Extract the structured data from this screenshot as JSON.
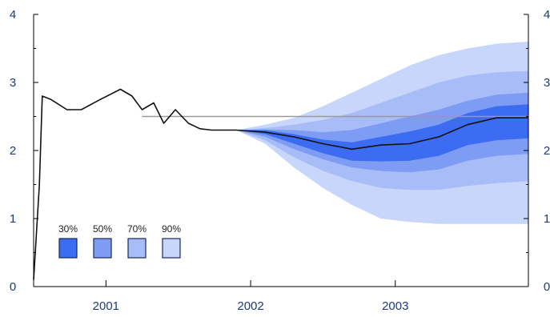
{
  "chart_data": {
    "type": "area",
    "title": "",
    "xlabel": "",
    "ylabel": "",
    "ylim": [
      0,
      4
    ],
    "xlim": [
      2000.0,
      2003.42
    ],
    "y_ticks": [
      "0",
      "1",
      "2",
      "3",
      "4"
    ],
    "x_tick_labels": [
      {
        "label": "2001",
        "x": 2001.5
      },
      {
        "label": "2002",
        "x": 2002.5
      },
      {
        "label": "2003",
        "x": 2003.5
      }
    ],
    "x_ticks": [
      2000.5,
      2001.5,
      2002.5,
      2003.5
    ],
    "history": {
      "x": [
        2000.0,
        2000.04,
        2000.06,
        2000.12,
        2000.23,
        2000.33,
        2000.46,
        2000.6,
        2000.68,
        2000.75,
        2000.83,
        2000.9,
        2000.98,
        2001.07,
        2001.15,
        2001.23,
        2001.3,
        2001.36,
        2001.4
      ],
      "y": [
        0.1,
        1.5,
        2.8,
        2.75,
        2.6,
        2.6,
        2.75,
        2.9,
        2.8,
        2.6,
        2.7,
        2.4,
        2.6,
        2.4,
        2.32,
        2.3,
        2.3,
        2.3,
        2.3
      ]
    },
    "projection": {
      "x": [
        2001.4,
        2001.6,
        2001.8,
        2002.0,
        2002.2,
        2002.4,
        2002.6,
        2002.8,
        2003.0,
        2003.2,
        2003.42
      ],
      "central": [
        2.3,
        2.27,
        2.2,
        2.1,
        2.02,
        2.08,
        2.1,
        2.2,
        2.38,
        2.48,
        2.48
      ]
    },
    "bands": [
      {
        "name": "90%",
        "color": "#c9d6fb",
        "upper": [
          2.3,
          2.38,
          2.48,
          2.65,
          2.85,
          3.05,
          3.25,
          3.4,
          3.5,
          3.57,
          3.6
        ],
        "lower": [
          2.3,
          2.1,
          1.75,
          1.45,
          1.2,
          1.0,
          0.95,
          0.92,
          0.92,
          0.92,
          0.92
        ]
      },
      {
        "name": "70%",
        "color": "#a8bdf8",
        "upper": [
          2.3,
          2.33,
          2.38,
          2.45,
          2.55,
          2.7,
          2.85,
          3.0,
          3.1,
          3.15,
          3.17
        ],
        "lower": [
          2.3,
          2.15,
          1.9,
          1.7,
          1.55,
          1.45,
          1.42,
          1.42,
          1.48,
          1.52,
          1.55
        ]
      },
      {
        "name": "50%",
        "color": "#7f9cf4",
        "upper": [
          2.3,
          2.31,
          2.3,
          2.27,
          2.3,
          2.4,
          2.5,
          2.6,
          2.73,
          2.82,
          2.85
        ],
        "lower": [
          2.3,
          2.2,
          2.02,
          1.87,
          1.75,
          1.7,
          1.68,
          1.72,
          1.85,
          1.92,
          1.95
        ]
      },
      {
        "name": "30%",
        "color": "#3b6cf2",
        "upper": [
          2.3,
          2.3,
          2.24,
          2.16,
          2.12,
          2.2,
          2.28,
          2.38,
          2.55,
          2.65,
          2.68
        ],
        "lower": [
          2.3,
          2.24,
          2.1,
          1.96,
          1.85,
          1.84,
          1.85,
          1.92,
          2.08,
          2.15,
          2.18
        ]
      }
    ],
    "reference_line": {
      "y": 2.5,
      "x_start": 2000.75,
      "x_end": 2003.42,
      "color": "#999999"
    },
    "legend": {
      "placement": "bottom-left",
      "items": [
        {
          "label": "30%",
          "color": "#3b6cf2"
        },
        {
          "label": "50%",
          "color": "#7f9cf4"
        },
        {
          "label": "70%",
          "color": "#a8bdf8"
        },
        {
          "label": "90%",
          "color": "#c9d6fb"
        }
      ]
    },
    "grid": false
  }
}
